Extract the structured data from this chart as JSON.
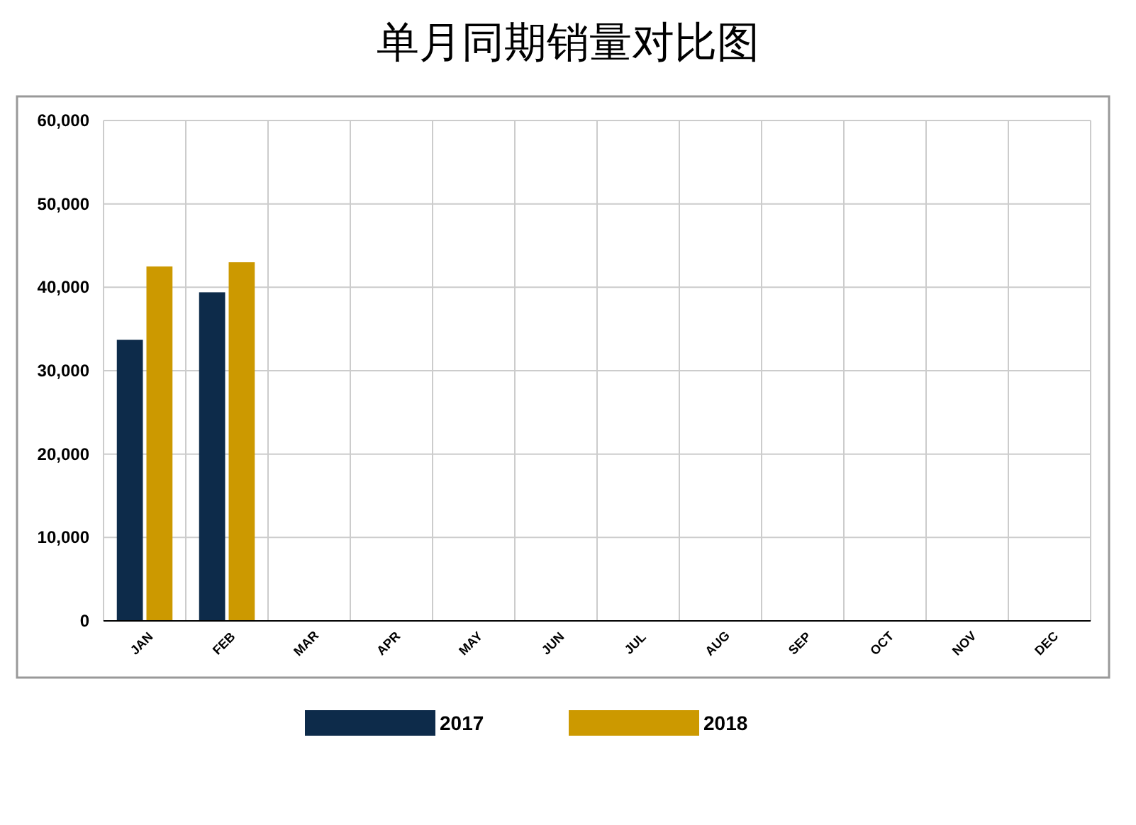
{
  "chart_data": {
    "type": "bar",
    "title": "单月同期销量对比图",
    "categories": [
      "JAN",
      "FEB",
      "MAR",
      "APR",
      "MAY",
      "JUN",
      "JUL",
      "AUG",
      "SEP",
      "OCT",
      "NOV",
      "DEC"
    ],
    "series": [
      {
        "name": "2017",
        "color": "#0d2b4a",
        "values": [
          33700,
          39400,
          null,
          null,
          null,
          null,
          null,
          null,
          null,
          null,
          null,
          null
        ]
      },
      {
        "name": "2018",
        "color": "#cc9900",
        "values": [
          42500,
          43000,
          null,
          null,
          null,
          null,
          null,
          null,
          null,
          null,
          null,
          null
        ]
      }
    ],
    "ylim": [
      0,
      60000
    ],
    "yticks": [
      {
        "value": 0,
        "label": "0"
      },
      {
        "value": 10000,
        "label": "10,000"
      },
      {
        "value": 20000,
        "label": "20,000"
      },
      {
        "value": 30000,
        "label": "30,000"
      },
      {
        "value": 40000,
        "label": "40,000"
      },
      {
        "value": 50000,
        "label": "50,000"
      },
      {
        "value": 60000,
        "label": "60,000"
      }
    ],
    "grid": true,
    "legend": "bottom"
  }
}
